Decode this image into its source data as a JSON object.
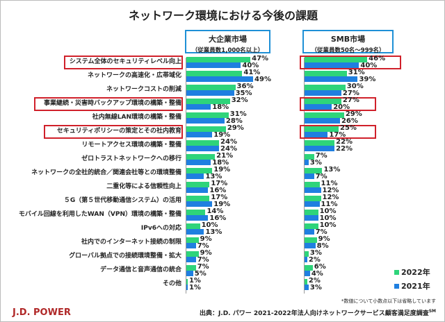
{
  "chart_data": {
    "type": "bar",
    "title": "ネットワーク環境における今後の課題",
    "categories": [
      "システム全体のセキュリティレベル向上",
      "ネットワークの高速化・広帯域化",
      "ネットワークコストの削減",
      "事業継続・災害時バックアップ環境の構築・整備",
      "社内無線LAN環境の構築・整備",
      "セキュリティポリシーの策定とその社内教育",
      "リモートアクセス環境の構築・整備",
      "ゼロトラストネットワークへの移行",
      "ネットワークの全社的統合／関連会社等との環境整備",
      "二重化等による信頼性向上",
      "５G（第５世代移動通信システム）の活用",
      "モバイル回線を利用したWAN（VPN）環境の構築・整備",
      "IPv6への対応",
      "社内でのインターネット接続の制限",
      "グローバル拠点での接続環境整備・拡大",
      "データ通信と音声通信の統合",
      "その他"
    ],
    "highlighted": [
      0,
      3,
      5
    ],
    "panels": [
      {
        "title": "大企業市場",
        "subtitle": "（従業員数1,000名以上）",
        "series": [
          {
            "name": "2022年",
            "color": "#2ed47a",
            "values": [
              47,
              41,
              36,
              32,
              31,
              29,
              24,
              21,
              19,
              17,
              17,
              14,
              10,
              9,
              9,
              7,
              1
            ]
          },
          {
            "name": "2021年",
            "color": "#1f7fe0",
            "values": [
              40,
              49,
              35,
              18,
              28,
              19,
              24,
              18,
              13,
              16,
              19,
              16,
              13,
              7,
              7,
              5,
              1
            ]
          }
        ]
      },
      {
        "title": "SMB市場",
        "subtitle": "（従業員数50名～999名）",
        "series": [
          {
            "name": "2022年",
            "color": "#2ed47a",
            "values": [
              46,
              31,
              30,
              27,
              29,
              25,
              22,
              7,
              13,
              11,
              12,
              10,
              10,
              9,
              3,
              6,
              2
            ]
          },
          {
            "name": "2021年",
            "color": "#1f7fe0",
            "values": [
              40,
              39,
              27,
              20,
              26,
              17,
              22,
              3,
              7,
              12,
              11,
              10,
              7,
              8,
              2,
              4,
              3
            ]
          }
        ]
      }
    ],
    "unit": "%"
  },
  "legend": [
    "2022年",
    "2021年"
  ],
  "note": "*数値について小数点以下は省略しています",
  "source": "出典：J.D. パワー 2021-2022年法人向けネットワークサービス顧客満足度調査",
  "source_sup": "SM",
  "logo": "J.D. POWER",
  "colors": {
    "highlight": "#d0202a",
    "header_border": "#1e90d6"
  }
}
